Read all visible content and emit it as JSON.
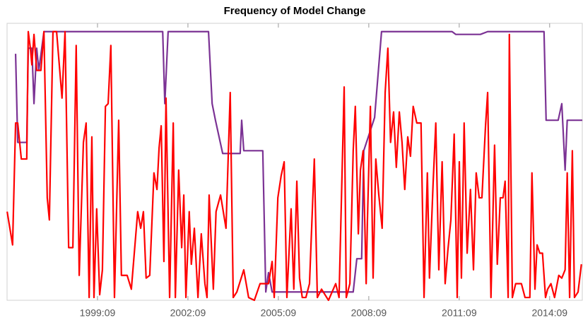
{
  "chart_data": {
    "type": "line",
    "title": "Frequency of Model Change",
    "xlim": [
      1996.667,
      2015.75
    ],
    "ylim": [
      0,
      1
    ],
    "xticks": [
      {
        "value": 1999.667,
        "label": "1999:09"
      },
      {
        "value": 2002.667,
        "label": "2002:09"
      },
      {
        "value": 2005.667,
        "label": "2005:09"
      },
      {
        "value": 2008.667,
        "label": "2008:09"
      },
      {
        "value": 2011.667,
        "label": "2011:09"
      },
      {
        "value": 2014.667,
        "label": "2014:09"
      }
    ],
    "series": [
      {
        "color": "#7b3294",
        "x": [
          1996.95,
          1997.02,
          1997.32,
          1997.37,
          1997.49,
          1997.56,
          1997.65,
          1997.72,
          1997.89,
          2001.83,
          2001.9,
          2002.01,
          2003.35,
          2003.47,
          2003.58,
          2003.82,
          2004.4,
          2004.45,
          2004.52,
          2005.15,
          2005.25,
          2005.34,
          2005.46,
          2008.15,
          2008.27,
          2008.43,
          2008.5,
          2008.86,
          2009.09,
          2011.43,
          2011.55,
          2012.37,
          2012.61,
          2014.48,
          2014.55,
          2014.95,
          2015.07,
          2015.18,
          2015.25,
          2015.75
        ],
        "values": [
          0.89,
          0.57,
          0.57,
          0.91,
          0.91,
          0.71,
          0.91,
          0.83,
          0.97,
          0.97,
          0.71,
          0.97,
          0.97,
          0.71,
          0.65,
          0.53,
          0.53,
          0.65,
          0.54,
          0.54,
          0.03,
          0.1,
          0.03,
          0.03,
          0.15,
          0.15,
          0.54,
          0.66,
          0.97,
          0.97,
          0.96,
          0.96,
          0.97,
          0.97,
          0.65,
          0.65,
          0.71,
          0.47,
          0.65,
          0.65
        ]
      },
      {
        "color": "#ff0000",
        "x": [
          1996.67,
          1996.85,
          1996.95,
          1997.02,
          1997.14,
          1997.32,
          1997.37,
          1997.44,
          1997.49,
          1997.56,
          1997.65,
          1997.79,
          1997.89,
          1998.0,
          1998.07,
          1998.19,
          1998.31,
          1998.49,
          1998.59,
          1998.71,
          1998.85,
          1998.96,
          1999.06,
          1999.2,
          1999.29,
          1999.39,
          1999.48,
          1999.55,
          1999.64,
          1999.74,
          1999.83,
          1999.93,
          2000.02,
          2000.11,
          2000.23,
          2000.37,
          2000.46,
          2000.65,
          2000.79,
          2001.0,
          2001.1,
          2001.19,
          2001.28,
          2001.4,
          2001.54,
          2001.64,
          2001.71,
          2001.78,
          2001.87,
          2001.94,
          2002.06,
          2002.18,
          2002.25,
          2002.36,
          2002.46,
          2002.53,
          2002.6,
          2002.71,
          2002.78,
          2002.88,
          2003.0,
          2003.11,
          2003.23,
          2003.3,
          2003.37,
          2003.51,
          2003.6,
          2003.75,
          2003.93,
          2004.07,
          2004.17,
          2004.29,
          2004.52,
          2004.68,
          2004.87,
          2005.06,
          2005.34,
          2005.46,
          2005.53,
          2005.65,
          2005.76,
          2005.86,
          2005.95,
          2006.09,
          2006.18,
          2006.28,
          2006.37,
          2006.46,
          2006.58,
          2006.7,
          2006.86,
          2006.96,
          2007.1,
          2007.33,
          2007.57,
          2007.68,
          2007.85,
          2007.92,
          2008.04,
          2008.15,
          2008.22,
          2008.32,
          2008.39,
          2008.48,
          2008.58,
          2008.62,
          2008.72,
          2008.81,
          2008.9,
          2009.0,
          2009.11,
          2009.21,
          2009.3,
          2009.39,
          2009.49,
          2009.58,
          2009.68,
          2009.77,
          2009.86,
          2009.96,
          2010.05,
          2010.14,
          2010.26,
          2010.4,
          2010.5,
          2010.61,
          2010.68,
          2010.8,
          2010.89,
          2010.99,
          2011.1,
          2011.2,
          2011.29,
          2011.39,
          2011.5,
          2011.6,
          2011.67,
          2011.74,
          2011.83,
          2011.93,
          2012.04,
          2012.14,
          2012.23,
          2012.33,
          2012.42,
          2012.54,
          2012.61,
          2012.72,
          2012.84,
          2012.93,
          2013.03,
          2013.12,
          2013.19,
          2013.29,
          2013.33,
          2013.43,
          2013.54,
          2013.73,
          2013.85,
          2014.01,
          2014.08,
          2014.18,
          2014.25,
          2014.34,
          2014.43,
          2014.53,
          2014.6,
          2014.71,
          2014.83,
          2014.97,
          2015.07,
          2015.18,
          2015.25,
          2015.33,
          2015.42,
          2015.49,
          2015.61,
          2015.72
        ],
        "values": [
          0.32,
          0.2,
          0.64,
          0.64,
          0.51,
          0.51,
          0.97,
          0.91,
          0.85,
          0.96,
          0.83,
          0.83,
          0.97,
          0.37,
          0.29,
          0.97,
          0.97,
          0.73,
          0.97,
          0.19,
          0.19,
          0.92,
          0.09,
          0.57,
          0.64,
          0.01,
          0.59,
          0.01,
          0.33,
          0.02,
          0.11,
          0.7,
          0.71,
          0.92,
          0.01,
          0.65,
          0.09,
          0.09,
          0.04,
          0.32,
          0.26,
          0.32,
          0.08,
          0.09,
          0.46,
          0.4,
          0.55,
          0.63,
          0.14,
          0.73,
          0.01,
          0.64,
          0.01,
          0.47,
          0.19,
          0.38,
          0.01,
          0.32,
          0.13,
          0.26,
          0.01,
          0.24,
          0.06,
          0.01,
          0.38,
          0.04,
          0.32,
          0.38,
          0.26,
          0.75,
          0.01,
          0.03,
          0.11,
          0.01,
          0,
          0.06,
          0.06,
          0.14,
          0.01,
          0.37,
          0.45,
          0.5,
          0.01,
          0.33,
          0.04,
          0.43,
          0.08,
          0.01,
          0.01,
          0.06,
          0.51,
          0.01,
          0.04,
          0,
          0.06,
          0.01,
          0.77,
          0.01,
          0.06,
          0.54,
          0.7,
          0.24,
          0.47,
          0.54,
          0.06,
          0.28,
          0.7,
          0.08,
          0.51,
          0.38,
          0.26,
          0.75,
          0.91,
          0.57,
          0.68,
          0.48,
          0.68,
          0.57,
          0.4,
          0.59,
          0.52,
          0.7,
          0.64,
          0.64,
          0.01,
          0.46,
          0.08,
          0.42,
          0.64,
          0.11,
          0.5,
          0.06,
          0.18,
          0.29,
          0.6,
          0.01,
          0.5,
          0.08,
          0.64,
          0.17,
          0.4,
          0.11,
          0.46,
          0.37,
          0.37,
          0.63,
          0.75,
          0.01,
          0.56,
          0.13,
          0.37,
          0.37,
          0.43,
          0.01,
          0.96,
          0.01,
          0.06,
          0.06,
          0.01,
          0.01,
          0.46,
          0.04,
          0.2,
          0.17,
          0.17,
          0.01,
          0.04,
          0.06,
          0.01,
          0.09,
          0.08,
          0.11,
          0.46,
          0.01,
          0.54,
          0.01,
          0.03,
          0.13
        ]
      }
    ]
  }
}
